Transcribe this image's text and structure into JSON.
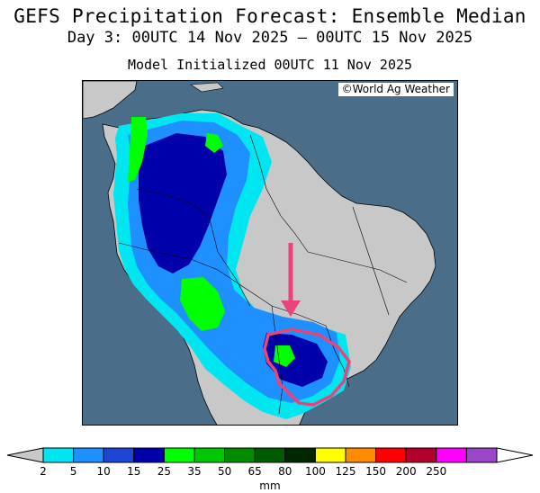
{
  "header": {
    "title": "GEFS Precipitation Forecast: Ensemble Median",
    "valid_period": "Day 3: 00UTC 14 Nov 2025 — 00UTC 15 Nov 2025",
    "initialized": "Model Initialized 00UTC 11 Nov 2025"
  },
  "map": {
    "credit": "©World Ag Weather",
    "colors": {
      "ocean": "#4a6e8a",
      "land": "#c8c8c8",
      "borders": "#000000"
    },
    "annotations": [
      {
        "type": "arrow",
        "color": "#e8457a",
        "label": ""
      },
      {
        "type": "outline",
        "color": "#e8457a",
        "label": ""
      }
    ]
  },
  "colorbar": {
    "unit": "mm",
    "levels": [
      "2",
      "5",
      "10",
      "15",
      "25",
      "35",
      "50",
      "65",
      "80",
      "100",
      "125",
      "150",
      "200",
      "250"
    ],
    "colors": [
      "#00e6f0",
      "#1e90ff",
      "#1e46d2",
      "#0000aa",
      "#00ff00",
      "#00c800",
      "#008c00",
      "#005a00",
      "#002800",
      "#ffff00",
      "#ff8c00",
      "#ff0000",
      "#b4002d",
      "#ff00ff",
      "#9b46c8"
    ],
    "under_color": "#c8c8c8",
    "over_color": "#ffffff"
  }
}
